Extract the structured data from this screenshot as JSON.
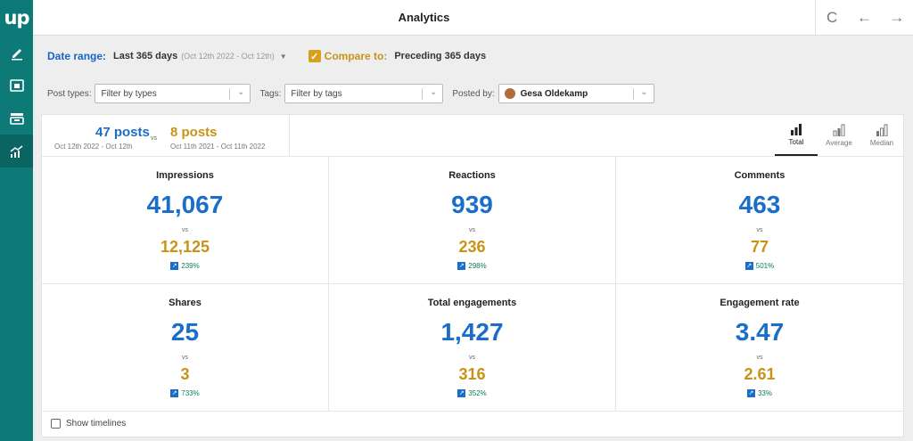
{
  "app": {
    "logo": "up",
    "title": "Analytics",
    "nav_icons": [
      "edit-icon",
      "calendar-icon",
      "inbox-icon",
      "analytics-icon"
    ],
    "accent": "#0d7a78"
  },
  "toolbar": {
    "refresh_icon": "C",
    "back_icon": "←",
    "forward_icon": "→"
  },
  "date_range": {
    "label": "Date range:",
    "value": "Last 365 days",
    "sub": "(Oct 12th 2022 - Oct 12th)"
  },
  "compare": {
    "label": "Compare to:",
    "value": "Preceding 365 days",
    "checked": true,
    "check_glyph": "✓"
  },
  "filters": {
    "post_types_label": "Post types:",
    "post_types_placeholder": "Filter by types",
    "tags_label": "Tags:",
    "tags_placeholder": "Filter by tags",
    "posted_by_label": "Posted by:",
    "posted_by_value": "Gesa Oldekamp"
  },
  "summary": {
    "primary_count": "47 posts",
    "primary_dates": "Oct 12th 2022 - Oct 12th",
    "vs": "vs",
    "compare_count": "8 posts",
    "compare_dates": "Oct 11th 2021 - Oct 11th 2022"
  },
  "tabs": [
    {
      "label": "Total",
      "active": true
    },
    {
      "label": "Average",
      "active": false
    },
    {
      "label": "Median",
      "active": false
    }
  ],
  "metrics": [
    {
      "name": "Impressions",
      "value": "41,067",
      "vs": "vs",
      "compare": "12,125",
      "change": "239%"
    },
    {
      "name": "Reactions",
      "value": "939",
      "vs": "vs",
      "compare": "236",
      "change": "298%"
    },
    {
      "name": "Comments",
      "value": "463",
      "vs": "vs",
      "compare": "77",
      "change": "501%"
    },
    {
      "name": "Shares",
      "value": "25",
      "vs": "vs",
      "compare": "3",
      "change": "733%"
    },
    {
      "name": "Total engagements",
      "value": "1,427",
      "vs": "vs",
      "compare": "316",
      "change": "352%"
    },
    {
      "name": "Engagement rate",
      "value": "3.47",
      "vs": "vs",
      "compare": "2.61",
      "change": "33%"
    }
  ],
  "footer": {
    "show_timelines_label": "Show timelines"
  },
  "colors": {
    "primary": "#1a6ec9",
    "compare": "#c99318",
    "positive": "#0d7a5f"
  }
}
